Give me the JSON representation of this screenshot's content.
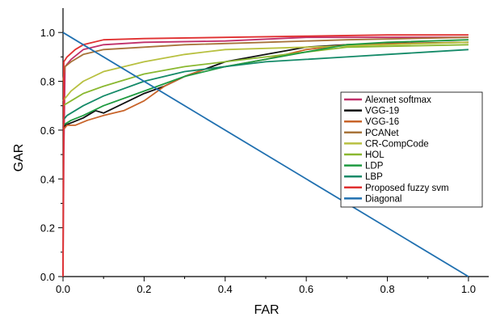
{
  "chart_data": {
    "type": "line",
    "title": "",
    "xlabel": "FAR",
    "ylabel": "GAR",
    "xlim": [
      0,
      1.05
    ],
    "ylim": [
      0,
      1.1
    ],
    "x_ticks": [
      0.0,
      0.2,
      0.4,
      0.6,
      0.8,
      1.0
    ],
    "x_tick_labels": [
      "0.0",
      "0.2",
      "0.4",
      "0.6",
      "0.8",
      "1.0"
    ],
    "y_ticks": [
      0.0,
      0.2,
      0.4,
      0.6,
      0.8,
      1.0
    ],
    "y_tick_labels": [
      "0.0",
      "0.2",
      "0.4",
      "0.6",
      "0.8",
      "1.0"
    ],
    "grid": false,
    "legend_position": "right",
    "series": [
      {
        "name": "Alexnet softmax",
        "color": "#c0306a",
        "points": [
          [
            0,
            0
          ],
          [
            0.002,
            0.5
          ],
          [
            0.005,
            0.86
          ],
          [
            0.02,
            0.89
          ],
          [
            0.05,
            0.93
          ],
          [
            0.1,
            0.95
          ],
          [
            0.2,
            0.96
          ],
          [
            0.4,
            0.965
          ],
          [
            0.6,
            0.98
          ],
          [
            1.0,
            0.98
          ]
        ]
      },
      {
        "name": "VGG-19",
        "color": "#111111",
        "points": [
          [
            0,
            0.6
          ],
          [
            0.005,
            0.62
          ],
          [
            0.02,
            0.63
          ],
          [
            0.05,
            0.65
          ],
          [
            0.08,
            0.68
          ],
          [
            0.1,
            0.67
          ],
          [
            0.15,
            0.71
          ],
          [
            0.2,
            0.75
          ],
          [
            0.25,
            0.78
          ],
          [
            0.3,
            0.82
          ],
          [
            0.35,
            0.85
          ],
          [
            0.4,
            0.88
          ],
          [
            0.5,
            0.91
          ],
          [
            0.6,
            0.94
          ],
          [
            0.7,
            0.95
          ],
          [
            0.8,
            0.955
          ],
          [
            1.0,
            0.96
          ]
        ]
      },
      {
        "name": "VGG-16",
        "color": "#c8642a",
        "points": [
          [
            0,
            0.6
          ],
          [
            0.01,
            0.62
          ],
          [
            0.03,
            0.62
          ],
          [
            0.06,
            0.64
          ],
          [
            0.1,
            0.66
          ],
          [
            0.15,
            0.68
          ],
          [
            0.2,
            0.72
          ],
          [
            0.25,
            0.78
          ],
          [
            0.3,
            0.82
          ],
          [
            0.35,
            0.85
          ],
          [
            0.4,
            0.86
          ],
          [
            0.5,
            0.89
          ],
          [
            0.6,
            0.93
          ],
          [
            0.7,
            0.95
          ],
          [
            1.0,
            0.96
          ]
        ]
      },
      {
        "name": "PCANet",
        "color": "#a8743a",
        "points": [
          [
            0,
            0.8
          ],
          [
            0.005,
            0.86
          ],
          [
            0.02,
            0.88
          ],
          [
            0.05,
            0.91
          ],
          [
            0.1,
            0.93
          ],
          [
            0.2,
            0.94
          ],
          [
            0.3,
            0.95
          ],
          [
            0.5,
            0.96
          ],
          [
            0.7,
            0.97
          ],
          [
            1.0,
            0.98
          ]
        ]
      },
      {
        "name": "CR-CompCode",
        "color": "#b8c040",
        "points": [
          [
            0,
            0.72
          ],
          [
            0.02,
            0.76
          ],
          [
            0.05,
            0.8
          ],
          [
            0.1,
            0.84
          ],
          [
            0.2,
            0.88
          ],
          [
            0.3,
            0.91
          ],
          [
            0.4,
            0.93
          ],
          [
            0.6,
            0.94
          ],
          [
            0.8,
            0.95
          ],
          [
            1.0,
            0.96
          ]
        ]
      },
      {
        "name": "HOL",
        "color": "#8ab830",
        "points": [
          [
            0,
            0.7
          ],
          [
            0.02,
            0.72
          ],
          [
            0.05,
            0.75
          ],
          [
            0.1,
            0.78
          ],
          [
            0.2,
            0.83
          ],
          [
            0.3,
            0.86
          ],
          [
            0.4,
            0.88
          ],
          [
            0.5,
            0.9
          ],
          [
            0.6,
            0.92
          ],
          [
            0.7,
            0.94
          ],
          [
            1.0,
            0.95
          ]
        ]
      },
      {
        "name": "LDP",
        "color": "#1e9a40",
        "points": [
          [
            0,
            0.62
          ],
          [
            0.02,
            0.64
          ],
          [
            0.05,
            0.66
          ],
          [
            0.1,
            0.7
          ],
          [
            0.2,
            0.76
          ],
          [
            0.3,
            0.82
          ],
          [
            0.4,
            0.86
          ],
          [
            0.5,
            0.89
          ],
          [
            0.6,
            0.92
          ],
          [
            0.7,
            0.95
          ],
          [
            0.8,
            0.96
          ],
          [
            1.0,
            0.97
          ]
        ]
      },
      {
        "name": "LBP",
        "color": "#148a68",
        "points": [
          [
            0,
            0.64
          ],
          [
            0.01,
            0.66
          ],
          [
            0.05,
            0.7
          ],
          [
            0.1,
            0.74
          ],
          [
            0.2,
            0.8
          ],
          [
            0.3,
            0.84
          ],
          [
            0.4,
            0.86
          ],
          [
            0.5,
            0.88
          ],
          [
            0.6,
            0.89
          ],
          [
            0.7,
            0.9
          ],
          [
            0.8,
            0.91
          ],
          [
            0.9,
            0.92
          ],
          [
            1.0,
            0.93
          ]
        ]
      },
      {
        "name": "Proposed fuzzy svm",
        "color": "#e03030",
        "points": [
          [
            0,
            0
          ],
          [
            0.002,
            0.88
          ],
          [
            0.01,
            0.9
          ],
          [
            0.03,
            0.93
          ],
          [
            0.05,
            0.95
          ],
          [
            0.1,
            0.97
          ],
          [
            0.2,
            0.975
          ],
          [
            0.4,
            0.98
          ],
          [
            0.6,
            0.985
          ],
          [
            0.8,
            0.99
          ],
          [
            1.0,
            0.99
          ]
        ]
      },
      {
        "name": "Diagonal",
        "color": "#2070b0",
        "points": [
          [
            0,
            1.0
          ],
          [
            1.0,
            0.0
          ]
        ]
      }
    ]
  }
}
